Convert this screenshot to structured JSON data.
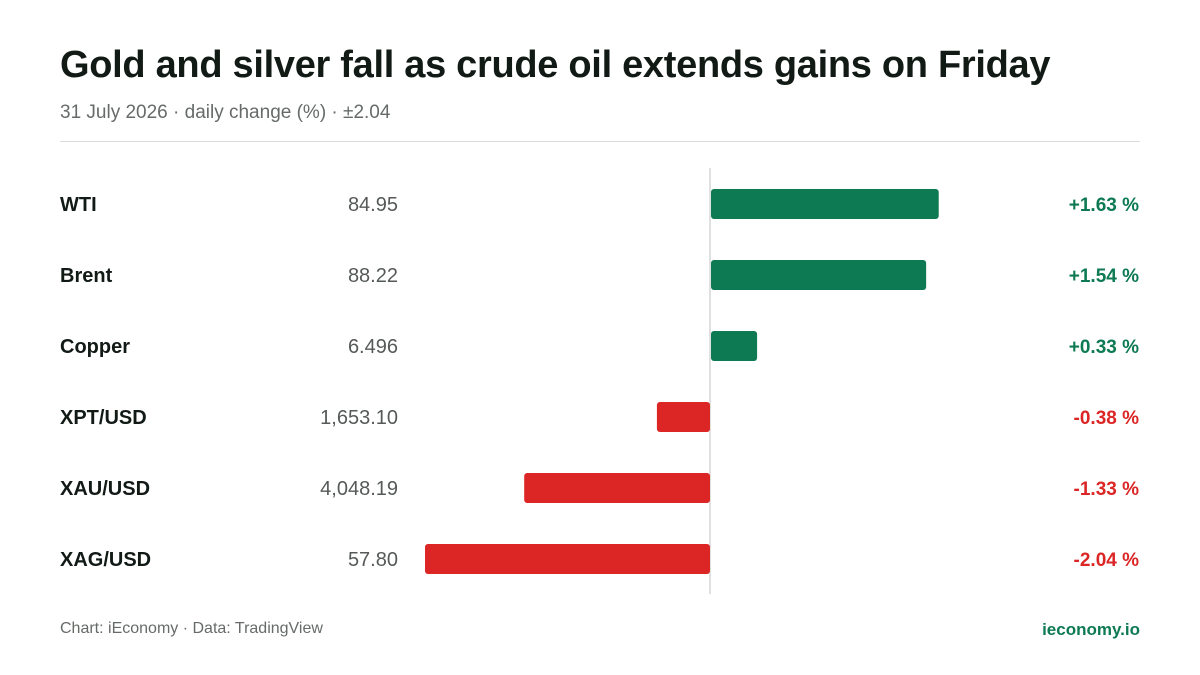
{
  "title": "Gold and silver fall as crude oil extends gains on Friday",
  "subtitle": "31 July 2026 · daily change (%) · ±2.04",
  "footer": {
    "source": "Chart: iEconomy · Data: TradingView",
    "brand": "ieconomy.io"
  },
  "colors": {
    "positive": "#0e7a53",
    "negative": "#dc2626",
    "axis": "#d5d5d5"
  },
  "chart_data": {
    "type": "bar",
    "orientation": "horizontal",
    "grid": false,
    "xlim": [
      -2.04,
      2.04
    ],
    "categories": [
      "WTI",
      "Brent",
      "Copper",
      "XPT/USD",
      "XAU/USD",
      "XAG/USD"
    ],
    "prices": [
      "84.95",
      "88.22",
      "6.496",
      "1,653.10",
      "4,048.19",
      "57.80"
    ],
    "values": [
      1.63,
      1.54,
      0.33,
      -0.38,
      -1.33,
      -2.04
    ],
    "value_labels": [
      "+1.63 %",
      "+1.54 %",
      "+0.33 %",
      "-0.38 %",
      "-1.33 %",
      "-2.04 %"
    ]
  }
}
